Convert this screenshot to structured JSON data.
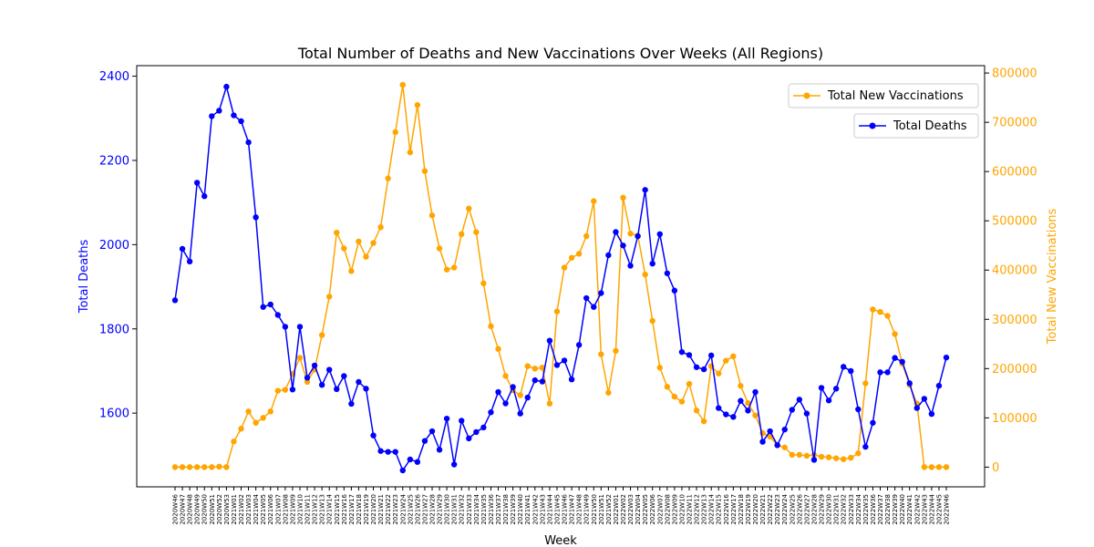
{
  "chart_data": {
    "type": "line",
    "title": "Total Number of Deaths and New Vaccinations Over Weeks (All Regions)",
    "xlabel": "Week",
    "ylabel_left": "Total Deaths",
    "ylabel_right": "Total New Vaccinations",
    "ylim_left": [
      1425,
      2425
    ],
    "ylim_right": [
      -40000,
      815000
    ],
    "yticks_left": [
      1600,
      1800,
      2000,
      2200,
      2400
    ],
    "yticks_right": [
      0,
      100000,
      200000,
      300000,
      400000,
      500000,
      600000,
      700000,
      800000
    ],
    "yticklabels_right": [
      "0",
      "100000",
      "200000",
      "300000",
      "400000",
      "500000",
      "600000",
      "700000",
      "800000"
    ],
    "grid": false,
    "colors": {
      "deaths": "#0000ff",
      "vaccinations": "#ffa500",
      "deaths_label": "#0000ff",
      "vaccinations_label": "#ffa500"
    },
    "legend": [
      {
        "name": "Total New Vaccinations",
        "color": "#ffa500",
        "placement": "upper right"
      },
      {
        "name": "Total Deaths",
        "color": "#0000ff",
        "placement": "upper right, below"
      }
    ],
    "categories": [
      "2020W46",
      "2020W47",
      "2020W48",
      "2020W49",
      "2020W50",
      "2020W51",
      "2020W52",
      "2020W53",
      "2021W01",
      "2021W02",
      "2021W03",
      "2021W04",
      "2021W05",
      "2021W06",
      "2021W07",
      "2021W08",
      "2021W09",
      "2021W10",
      "2021W11",
      "2021W12",
      "2021W13",
      "2021W14",
      "2021W15",
      "2021W16",
      "2021W17",
      "2021W18",
      "2021W19",
      "2021W20",
      "2021W21",
      "2021W22",
      "2021W23",
      "2021W24",
      "2021W25",
      "2021W26",
      "2021W27",
      "2021W28",
      "2021W29",
      "2021W30",
      "2021W31",
      "2021W32",
      "2021W33",
      "2021W34",
      "2021W35",
      "2021W36",
      "2021W37",
      "2021W38",
      "2021W39",
      "2021W40",
      "2021W41",
      "2021W42",
      "2021W43",
      "2021W44",
      "2021W45",
      "2021W46",
      "2021W47",
      "2021W48",
      "2021W49",
      "2021W50",
      "2021W51",
      "2021W52",
      "2022W01",
      "2022W02",
      "2022W03",
      "2022W04",
      "2022W05",
      "2022W06",
      "2022W07",
      "2022W08",
      "2022W09",
      "2022W10",
      "2022W11",
      "2022W12",
      "2022W13",
      "2022W14",
      "2022W15",
      "2022W16",
      "2022W17",
      "2022W18",
      "2022W19",
      "2022W20",
      "2022W21",
      "2022W22",
      "2022W23",
      "2022W24",
      "2022W25",
      "2022W26",
      "2022W27",
      "2022W28",
      "2022W29",
      "2022W30",
      "2022W31",
      "2022W32",
      "2022W33",
      "2022W34",
      "2022W35",
      "2022W36",
      "2022W37",
      "2022W38",
      "2022W39",
      "2022W40",
      "2022W41",
      "2022W42",
      "2022W43",
      "2022W44",
      "2022W45",
      "2022W46"
    ],
    "series": [
      {
        "name": "Total Deaths",
        "axis": "left",
        "values": [
          1868,
          1990,
          1960,
          2147,
          2115,
          2305,
          2318,
          2375,
          2307,
          2293,
          2243,
          2065,
          1852,
          1858,
          1833,
          1805,
          1656,
          1805,
          1684,
          1713,
          1667,
          1703,
          1657,
          1688,
          1622,
          1674,
          1658,
          1547,
          1510,
          1508,
          1508,
          1464,
          1490,
          1484,
          1534,
          1557,
          1513,
          1587,
          1478,
          1582,
          1540,
          1555,
          1566,
          1602,
          1650,
          1623,
          1662,
          1599,
          1637,
          1678,
          1675,
          1772,
          1714,
          1725,
          1680,
          1762,
          1873,
          1852,
          1885,
          1975,
          2030,
          1998,
          1950,
          2020,
          2130,
          1955,
          2025,
          1932,
          1891,
          1745,
          1738,
          1709,
          1704,
          1737,
          1612,
          1597,
          1591,
          1629,
          1606,
          1650,
          1532,
          1557,
          1524,
          1561,
          1608,
          1632,
          1599,
          1489,
          1660,
          1630,
          1658,
          1710,
          1700,
          1609,
          1520,
          1577,
          1697,
          1697,
          1731,
          1722,
          1671,
          1612,
          1634,
          1598,
          1665,
          1732
        ]
      },
      {
        "name": "Total New Vaccinations",
        "axis": "right",
        "values": [
          0,
          0,
          0,
          0,
          0,
          0,
          1000,
          0,
          52000,
          78000,
          113000,
          90000,
          100000,
          113000,
          155000,
          157000,
          189000,
          222000,
          173000,
          198000,
          268000,
          346000,
          476000,
          444000,
          398000,
          458000,
          427000,
          455000,
          487000,
          586000,
          680000,
          776000,
          639000,
          735000,
          601000,
          511000,
          444000,
          401000,
          405000,
          473000,
          525000,
          477000,
          373000,
          286000,
          240000,
          185000,
          156000,
          146000,
          205000,
          200000,
          202000,
          129000,
          316000,
          405000,
          425000,
          433000,
          469000,
          540000,
          229000,
          151000,
          236000,
          547000,
          474000,
          470000,
          391000,
          297000,
          202000,
          163000,
          143000,
          133000,
          169000,
          115000,
          93000,
          205000,
          190000,
          216000,
          225000,
          165000,
          130000,
          105000,
          69000,
          62000,
          44000,
          40000,
          25000,
          25000,
          23000,
          25000,
          21000,
          20000,
          18000,
          16000,
          19000,
          28000,
          170000,
          320000,
          315000,
          307000,
          270000,
          210000,
          167000,
          129000,
          0,
          0,
          0,
          0
        ]
      }
    ]
  }
}
